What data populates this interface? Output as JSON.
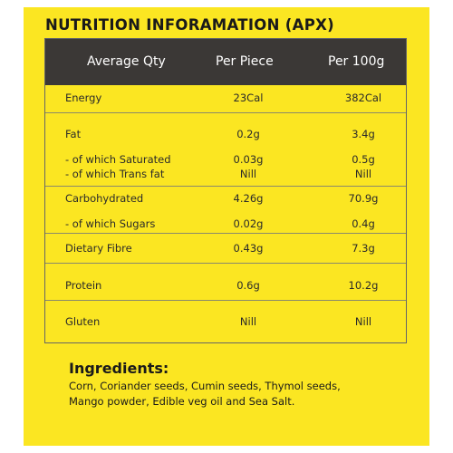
{
  "title": "NUTRITION INFORAMATION (APX)",
  "header": {
    "col1": "Average Qty",
    "col2": "Per Piece",
    "col3": "Per 100g"
  },
  "rows": [
    {
      "label": "Energy",
      "per_piece": "23Cal",
      "per_100g": "382Cal"
    },
    {
      "label": "Fat",
      "per_piece": "0.2g",
      "per_100g": "3.4g"
    },
    {
      "label": "- of which Saturated",
      "per_piece": "0.03g",
      "per_100g": "0.5g"
    },
    {
      "label": "- of which Trans fat",
      "per_piece": "Nill",
      "per_100g": "Nill"
    },
    {
      "label": "Carbohydrated",
      "per_piece": "4.26g",
      "per_100g": "70.9g"
    },
    {
      "label": "- of which Sugars",
      "per_piece": "0.02g",
      "per_100g": "0.4g"
    },
    {
      "label": "Dietary Fibre",
      "per_piece": "0.43g",
      "per_100g": "7.3g"
    },
    {
      "label": "Protein",
      "per_piece": "0.6g",
      "per_100g": "10.2g"
    },
    {
      "label": "Gluten",
      "per_piece": "Nill",
      "per_100g": "Nill"
    }
  ],
  "ingredients": {
    "title": "Ingredients:",
    "text": "Corn, Coriander seeds, Cumin seeds, Thymol seeds, Mango powder, Edible veg oil and Sea Salt."
  },
  "colors": {
    "background": "#fbe622",
    "header_bg": "#3b3836"
  }
}
